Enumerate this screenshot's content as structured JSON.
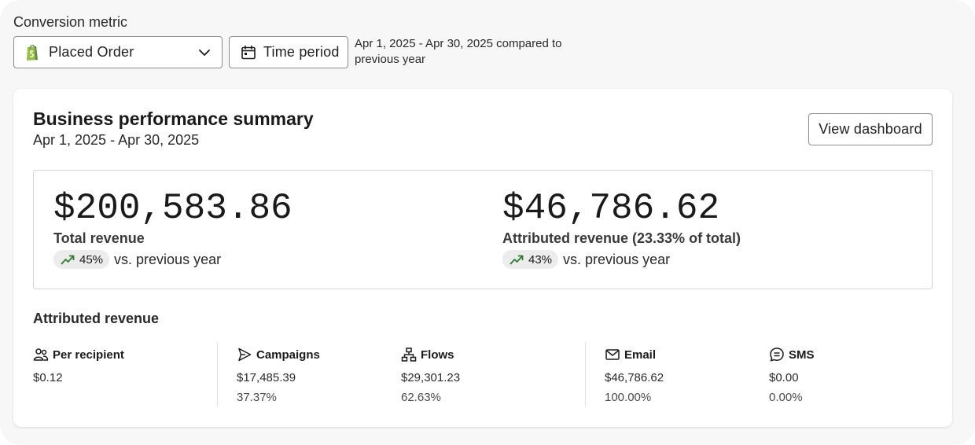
{
  "controls": {
    "metric_label": "Conversion metric",
    "metric_value": "Placed Order",
    "time_button": "Time period",
    "range_note": "Apr 1, 2025 - Apr 30, 2025 compared to previous year"
  },
  "summary": {
    "title": "Business performance summary",
    "date_range": "Apr 1, 2025 - Apr 30, 2025",
    "view_button": "View dashboard",
    "kpis": [
      {
        "value": "$200,583.86",
        "label": "Total revenue",
        "change": "45%",
        "comparison": "vs. previous year",
        "trend_icon": "trend-up-icon"
      },
      {
        "value": "$46,786.62",
        "label": "Attributed revenue (23.33% of total)",
        "change": "43%",
        "comparison": "vs. previous year",
        "trend_icon": "trend-up-icon"
      }
    ]
  },
  "attributed": {
    "title": "Attributed revenue",
    "columns": [
      {
        "icon": "people-icon",
        "label": "Per recipient",
        "value": "$0.12",
        "share": ""
      },
      {
        "icon": "campaign-send-icon",
        "label": "Campaigns",
        "value": "$17,485.39",
        "share": "37.37%"
      },
      {
        "icon": "flows-icon",
        "label": "Flows",
        "value": "$29,301.23",
        "share": "62.63%"
      },
      {
        "icon": "email-icon",
        "label": "Email",
        "value": "$46,786.62",
        "share": "100.00%"
      },
      {
        "icon": "sms-icon",
        "label": "SMS",
        "value": "$0.00",
        "share": "0.00%"
      }
    ]
  },
  "colors": {
    "accent_green": "#2e7d32",
    "shopify_green": "#95bf47"
  }
}
